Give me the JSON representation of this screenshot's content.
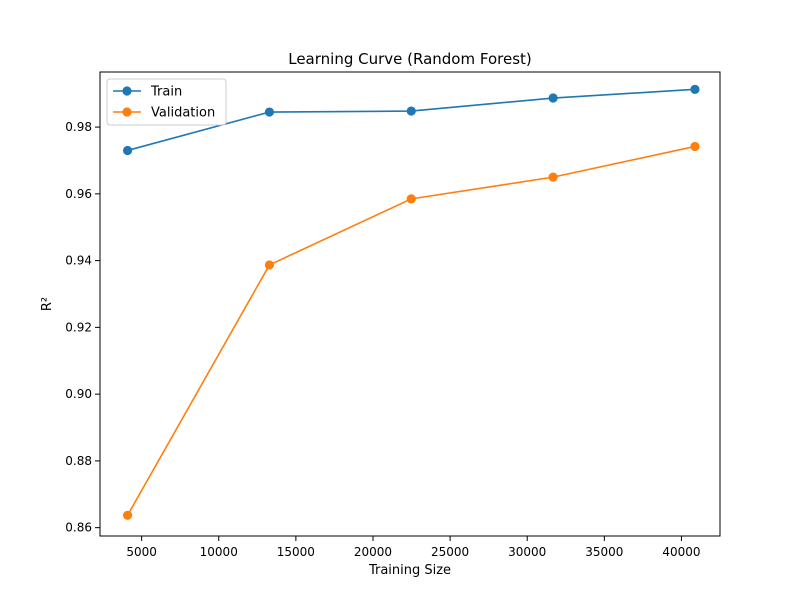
{
  "chart_data": {
    "type": "line",
    "title": "Learning Curve (Random Forest)",
    "xlabel": "Training Size",
    "ylabel": "R²",
    "xlim": [
      2300,
      42500
    ],
    "ylim": [
      0.8575,
      0.9965
    ],
    "xticks": [
      5000,
      10000,
      15000,
      20000,
      25000,
      30000,
      35000,
      40000
    ],
    "xtick_labels": [
      "5000",
      "10000",
      "15000",
      "20000",
      "25000",
      "30000",
      "35000",
      "40000"
    ],
    "yticks": [
      0.86,
      0.88,
      0.9,
      0.92,
      0.94,
      0.96,
      0.98
    ],
    "ytick_labels": [
      "0.86",
      "0.88",
      "0.90",
      "0.92",
      "0.94",
      "0.96",
      "0.98"
    ],
    "grid": false,
    "legend": "upper-left",
    "x": [
      4088,
      13285,
      22482,
      31679,
      40876
    ],
    "series": [
      {
        "name": "Train",
        "color": "#1f77b4",
        "values": [
          0.973,
          0.9845,
          0.9848,
          0.9887,
          0.9913
        ]
      },
      {
        "name": "Validation",
        "color": "#ff7f0e",
        "values": [
          0.8637,
          0.9387,
          0.9585,
          0.965,
          0.9742
        ]
      }
    ]
  }
}
